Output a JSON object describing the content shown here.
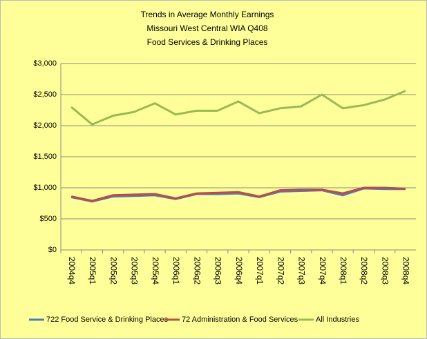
{
  "chart_data": {
    "type": "line",
    "title": [
      "Trends in Average Monthly Earnings",
      "Missouri West Central WIA Q408",
      "Food Services & Drinking Places"
    ],
    "categories": [
      "2004q4",
      "2005q1",
      "2005q2",
      "2005q3",
      "2005q4",
      "2006q1",
      "2006q2",
      "2006q3",
      "2006q4",
      "2007q1",
      "2007q2",
      "2007q3",
      "2007q4",
      "2008q1",
      "2008q2",
      "2008q3",
      "2008q4"
    ],
    "series": [
      {
        "name": "722 Food Service & Drinking Places",
        "color": "#4a7ebb",
        "values": [
          850,
          780,
          860,
          870,
          880,
          820,
          900,
          900,
          910,
          850,
          940,
          950,
          960,
          880,
          990,
          980,
          980
        ]
      },
      {
        "name": "72 Administration & Food Services",
        "color": "#be4b48",
        "values": [
          860,
          790,
          880,
          890,
          900,
          830,
          910,
          920,
          930,
          860,
          960,
          970,
          970,
          910,
          1000,
          1000,
          985
        ]
      },
      {
        "name": "All Industries",
        "color": "#98b954",
        "values": [
          2300,
          2020,
          2160,
          2220,
          2360,
          2180,
          2240,
          2240,
          2390,
          2200,
          2280,
          2310,
          2500,
          2280,
          2330,
          2420,
          2560
        ]
      }
    ],
    "ylim": [
      0,
      3000
    ],
    "yticks": [
      {
        "value": 0,
        "label": "$0"
      },
      {
        "value": 500,
        "label": "$500"
      },
      {
        "value": 1000,
        "label": "$1,000"
      },
      {
        "value": 1500,
        "label": "$1,500"
      },
      {
        "value": 2000,
        "label": "$2,000"
      },
      {
        "value": 2500,
        "label": "$2,500"
      },
      {
        "value": 3000,
        "label": "$3,000"
      }
    ],
    "grid": true,
    "legend": "bottom"
  }
}
